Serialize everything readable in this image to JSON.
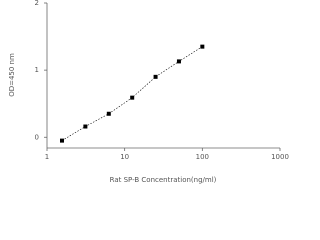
{
  "chart_data": {
    "type": "line",
    "x_label": "Rat SP-B Concentration(ng/ml)",
    "y_label": "OD=450 nm",
    "x": [
      1.56,
      3.12,
      6.25,
      12.5,
      25,
      50,
      100
    ],
    "series": [
      {
        "values": [
          -0.05,
          0.16,
          0.35,
          0.59,
          0.9,
          1.13,
          1.35
        ],
        "color": "#000000"
      }
    ],
    "xlim": [
      1,
      1000
    ],
    "xticks": [
      1,
      10,
      100,
      1000
    ],
    "xscale": "log",
    "ylim": [
      -0.16,
      2.0
    ],
    "yticks": [
      0,
      1,
      2
    ]
  }
}
